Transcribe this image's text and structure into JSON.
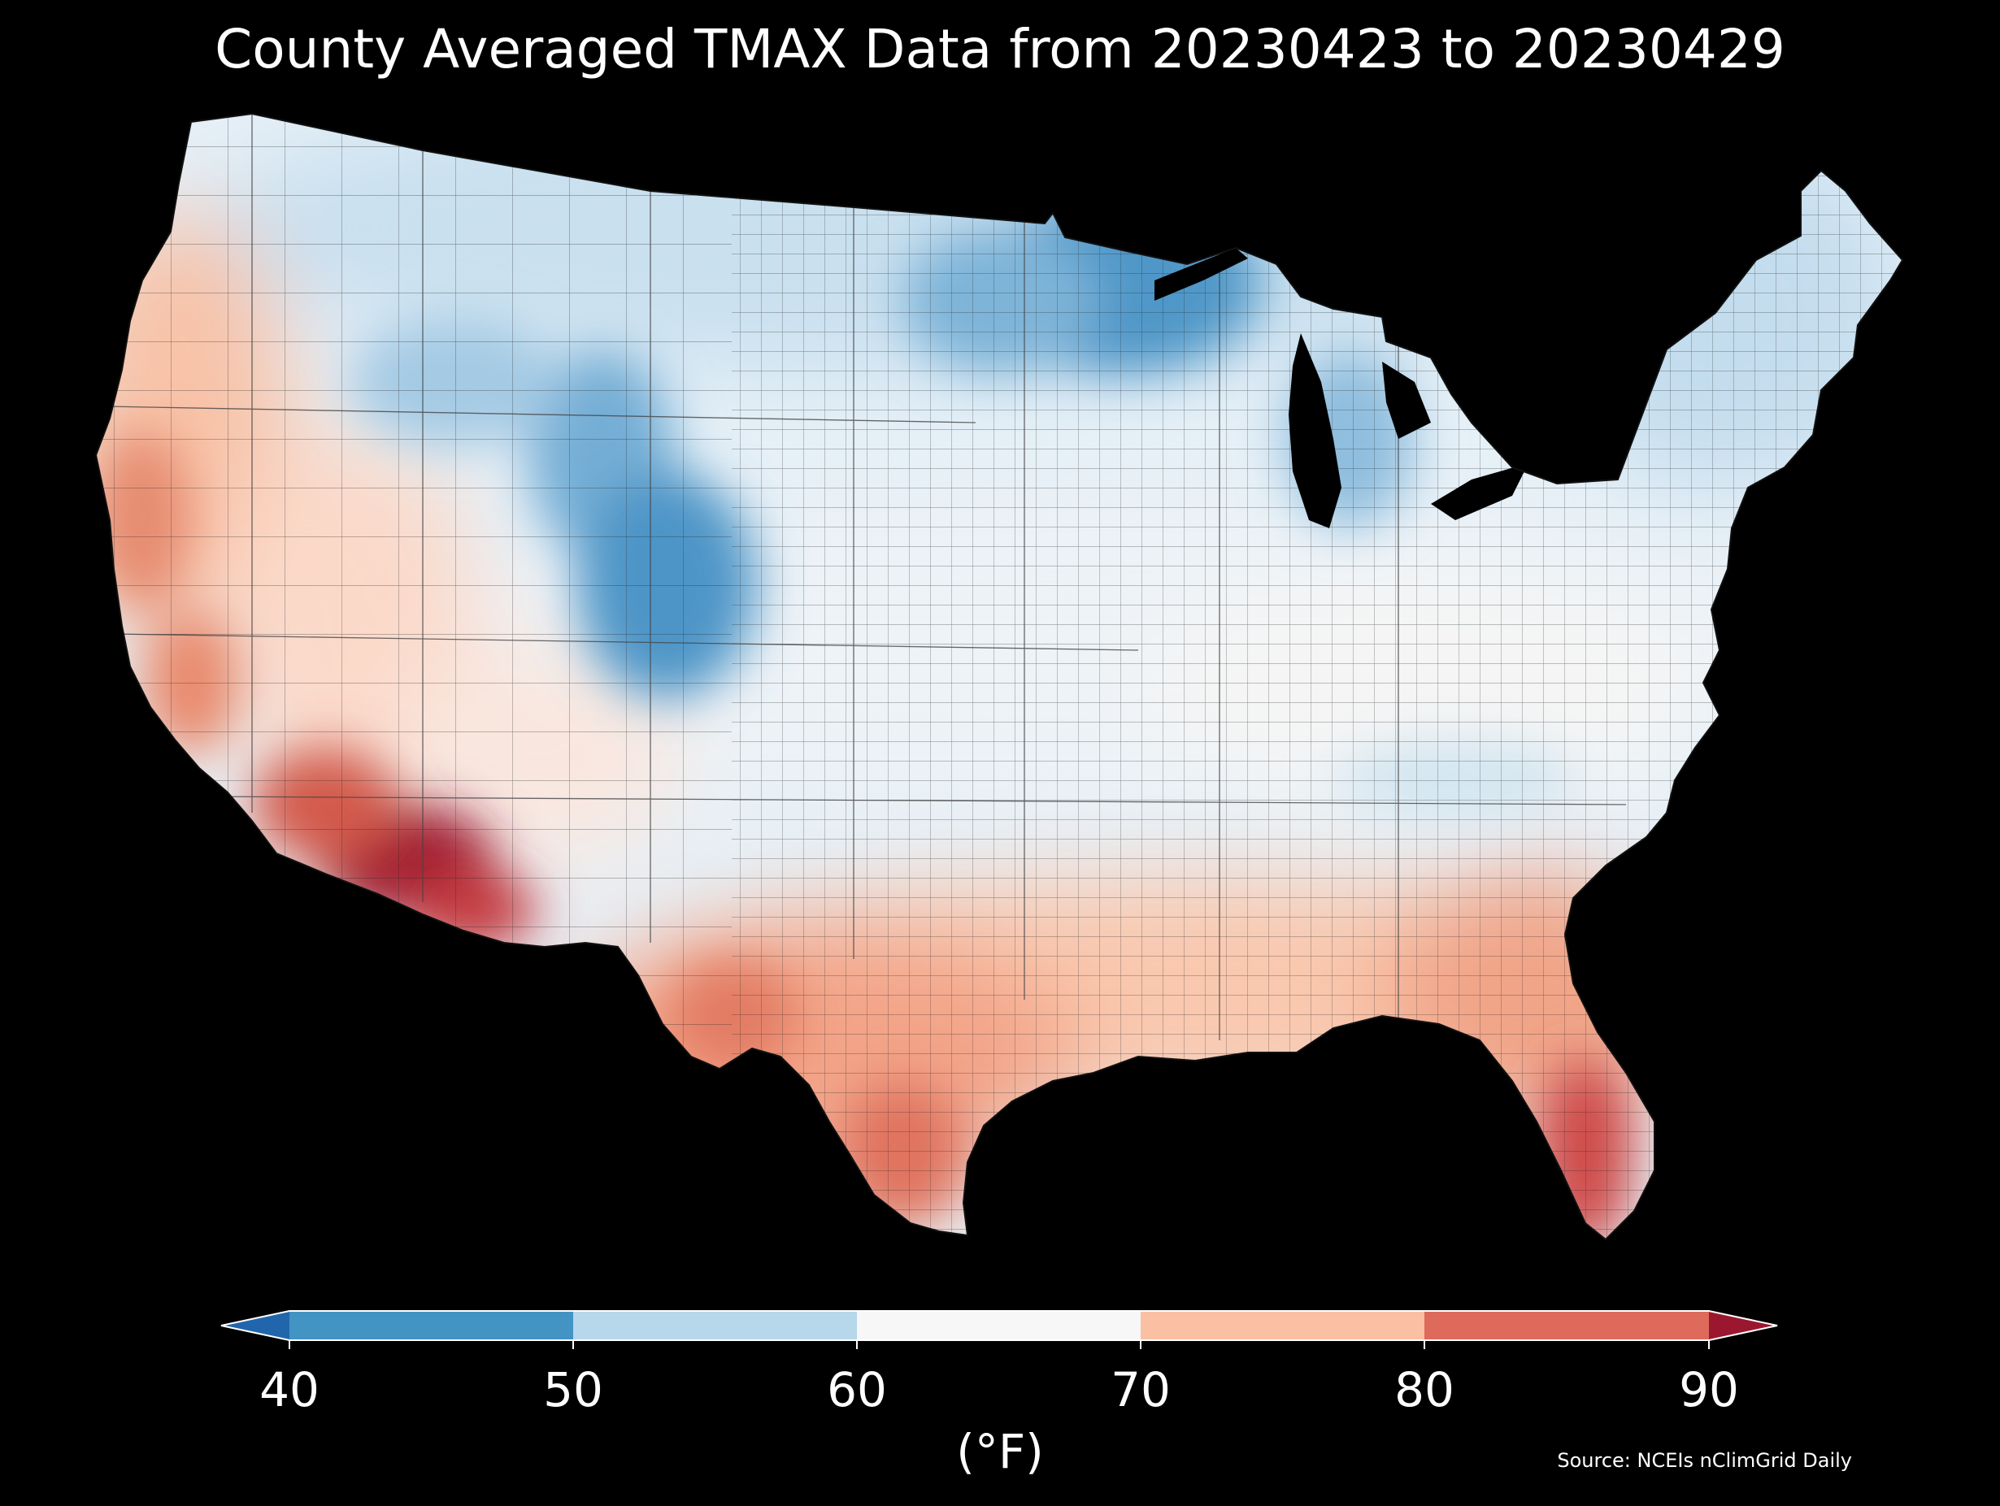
{
  "title": "County Averaged TMAX Data from 20230423 to 20230429",
  "legend": {
    "unit": "(°F)",
    "ticks": [
      "40",
      "50",
      "60",
      "70",
      "80",
      "90"
    ],
    "bins": [
      {
        "range": "<40",
        "color": "#2166ac"
      },
      {
        "range": "40-50",
        "color": "#4393c3"
      },
      {
        "range": "50-60",
        "color": "#b7d7ea"
      },
      {
        "range": "60-70",
        "color": "#f7f7f7"
      },
      {
        "range": "70-80",
        "color": "#f9c0a3"
      },
      {
        "range": "80-90",
        "color": "#dd6a5a"
      },
      {
        "range": ">90",
        "color": "#9b1730"
      }
    ]
  },
  "source": "Source: NCEIs nClimGrid Daily",
  "map_data": {
    "region": "Contiguous United States, county level",
    "variable": "TMAX",
    "regional_pattern": [
      {
        "region": "Arizona desert / lower Colorado River",
        "bin": ">90"
      },
      {
        "region": "Southern Arizona",
        "bin": "80-90"
      },
      {
        "region": "Southern California deserts",
        "bin": "80-90"
      },
      {
        "region": "South Florida",
        "bin": "80-90"
      },
      {
        "region": "South Texas",
        "bin": "80-90"
      },
      {
        "region": "Central Valley of California",
        "bin": "80-90"
      },
      {
        "region": "Gulf Coast and Southeast",
        "bin": "70-80"
      },
      {
        "region": "West Texas and southern New Mexico",
        "bin": "70-80"
      },
      {
        "region": "Pacific Northwest coast",
        "bin": "70-80"
      },
      {
        "region": "Nevada and Utah",
        "bin": "60-70"
      },
      {
        "region": "Central Plains and Ohio Valley",
        "bin": "60-70"
      },
      {
        "region": "Mid-Atlantic",
        "bin": "60-70"
      },
      {
        "region": "Northern Plains",
        "bin": "50-60"
      },
      {
        "region": "Northeast and New England",
        "bin": "50-60"
      },
      {
        "region": "Wyoming and Colorado Rockies",
        "bin": "40-50"
      },
      {
        "region": "Minnesota, Wisconsin, Upper Michigan",
        "bin": "40-50"
      }
    ]
  }
}
